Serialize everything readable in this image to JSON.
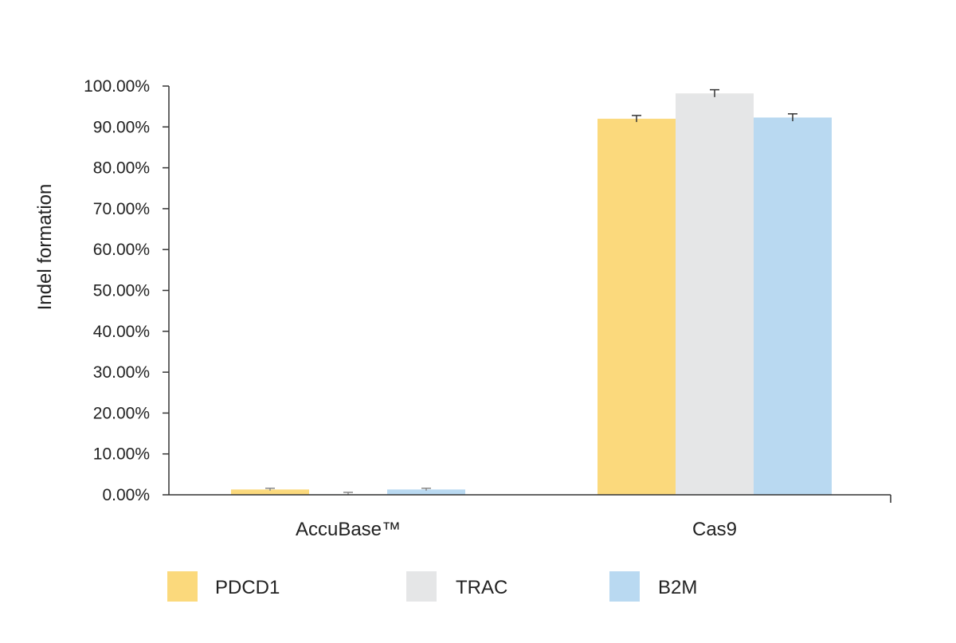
{
  "chart_data": {
    "type": "bar",
    "title": "",
    "xlabel": "",
    "ylabel": "Indel formation",
    "ylim": [
      0,
      100
    ],
    "yticks": [
      "0.00%",
      "10.00%",
      "20.00%",
      "30.00%",
      "40.00%",
      "50.00%",
      "60.00%",
      "70.00%",
      "80.00%",
      "90.00%",
      "100.00%"
    ],
    "categories": [
      "AccuBase™",
      "Cas9"
    ],
    "series": [
      {
        "name": "PDCD1",
        "values": [
          1.3,
          92.0
        ],
        "errors": [
          0.3,
          0.8
        ],
        "color": "#fbd97c"
      },
      {
        "name": "TRAC",
        "values": [
          0.2,
          98.2
        ],
        "errors": [
          0.4,
          0.9
        ],
        "color": "#e5e6e7"
      },
      {
        "name": "B2M",
        "values": [
          1.3,
          92.3
        ],
        "errors": [
          0.3,
          0.9
        ],
        "color": "#b9d9f1"
      }
    ],
    "grid": false,
    "legend_position": "bottom"
  }
}
